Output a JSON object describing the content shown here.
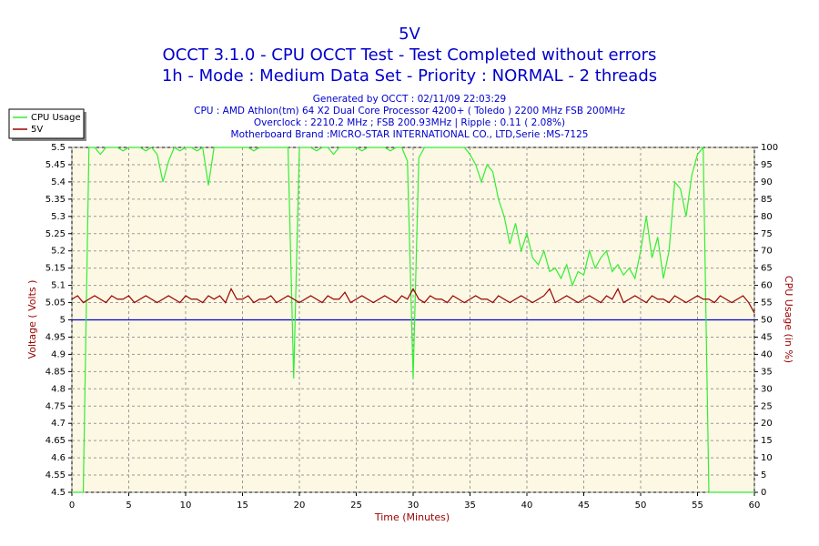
{
  "chart_data": {
    "type": "line",
    "title": [
      "5V",
      "OCCT 3.1.0 - CPU OCCT Test - Test Completed without errors",
      "1h - Mode : Medium Data Set - Priority : NORMAL - 2 threads"
    ],
    "subtitle": [
      "Generated by OCCT : 02/11/09 22:03:29",
      "CPU : AMD Athlon(tm) 64 X2 Dual Core Processor 4200+ ( Toledo ) 2200 MHz FSB 200MHz",
      "Overclock : 2210.2 MHz ; FSB 200.93MHz | Ripple : 0.11 ( 2.08%)",
      "Motherboard Brand :MICRO-STAR INTERNATIONAL CO., LTD,Serie :MS-7125"
    ],
    "xlabel": "Time (Minutes)",
    "ylabel": "Voltage ( Volts )",
    "y2label": "CPU Usage (in %)",
    "x": [
      0,
      0.5,
      1,
      1.5,
      2,
      2.5,
      3,
      3.5,
      4,
      4.5,
      5,
      5.5,
      6,
      6.5,
      7,
      7.5,
      8,
      8.5,
      9,
      9.5,
      10,
      10.5,
      11,
      11.5,
      12,
      12.5,
      13,
      13.5,
      14,
      14.5,
      15,
      15.5,
      16,
      16.5,
      17,
      17.5,
      18,
      18.5,
      19,
      19.5,
      20,
      20.5,
      21,
      21.5,
      22,
      22.5,
      23,
      23.5,
      24,
      24.5,
      25,
      25.5,
      26,
      26.5,
      27,
      27.5,
      28,
      28.5,
      29,
      29.5,
      30,
      30.5,
      31,
      31.5,
      32,
      32.5,
      33,
      33.5,
      34,
      34.5,
      35,
      35.5,
      36,
      36.5,
      37,
      37.5,
      38,
      38.5,
      39,
      39.5,
      40,
      40.5,
      41,
      41.5,
      42,
      42.5,
      43,
      43.5,
      44,
      44.5,
      45,
      45.5,
      46,
      46.5,
      47,
      47.5,
      48,
      48.5,
      49,
      49.5,
      50,
      50.5,
      51,
      51.5,
      52,
      52.5,
      53,
      53.5,
      54,
      54.5,
      55,
      55.5,
      56,
      56.5,
      57,
      57.5,
      58,
      58.5,
      59,
      59.5,
      60
    ],
    "series": [
      {
        "name": "CPU Usage",
        "color": "#33ee33",
        "axis": "y2",
        "values": [
          0,
          0,
          0,
          100,
          100,
          98,
          100,
          100,
          100,
          99,
          100,
          100,
          100,
          99,
          100,
          98,
          90,
          96,
          100,
          99,
          100,
          100,
          99,
          100,
          89,
          100,
          100,
          100,
          100,
          100,
          100,
          100,
          99,
          100,
          100,
          100,
          100,
          100,
          100,
          33,
          100,
          100,
          100,
          99,
          100,
          100,
          98,
          100,
          100,
          100,
          100,
          99,
          100,
          100,
          100,
          100,
          99,
          100,
          100,
          96,
          33,
          97,
          100,
          100,
          100,
          100,
          100,
          100,
          100,
          100,
          98,
          95,
          90,
          95,
          93,
          85,
          80,
          72,
          78,
          70,
          75,
          68,
          66,
          70,
          64,
          65,
          62,
          66,
          60,
          64,
          63,
          70,
          65,
          68,
          70,
          64,
          66,
          63,
          65,
          62,
          70,
          80,
          68,
          74,
          62,
          70,
          90,
          88,
          80,
          92,
          98,
          100,
          0,
          0,
          0,
          0,
          0,
          0,
          0,
          0,
          0
        ]
      },
      {
        "name": "5V",
        "color": "#990000",
        "values": [
          5.06,
          5.07,
          5.05,
          5.06,
          5.07,
          5.06,
          5.05,
          5.07,
          5.06,
          5.06,
          5.07,
          5.05,
          5.06,
          5.07,
          5.06,
          5.05,
          5.06,
          5.07,
          5.06,
          5.05,
          5.07,
          5.06,
          5.06,
          5.05,
          5.07,
          5.06,
          5.07,
          5.05,
          5.09,
          5.06,
          5.06,
          5.07,
          5.05,
          5.06,
          5.06,
          5.07,
          5.05,
          5.06,
          5.07,
          5.06,
          5.05,
          5.06,
          5.07,
          5.06,
          5.05,
          5.07,
          5.06,
          5.06,
          5.08,
          5.05,
          5.06,
          5.07,
          5.06,
          5.05,
          5.06,
          5.07,
          5.06,
          5.05,
          5.07,
          5.06,
          5.09,
          5.06,
          5.05,
          5.07,
          5.06,
          5.06,
          5.05,
          5.07,
          5.06,
          5.05,
          5.06,
          5.07,
          5.06,
          5.06,
          5.05,
          5.07,
          5.06,
          5.05,
          5.06,
          5.07,
          5.06,
          5.05,
          5.06,
          5.07,
          5.09,
          5.05,
          5.06,
          5.07,
          5.06,
          5.05,
          5.06,
          5.07,
          5.06,
          5.05,
          5.07,
          5.06,
          5.09,
          5.05,
          5.06,
          5.07,
          5.06,
          5.05,
          5.07,
          5.06,
          5.06,
          5.05,
          5.07,
          5.06,
          5.05,
          5.06,
          5.07,
          5.06,
          5.06,
          5.05,
          5.07,
          5.06,
          5.05,
          5.06,
          5.07,
          5.05,
          5.02
        ]
      }
    ],
    "hline": {
      "value": 5,
      "color": "#0000cc"
    },
    "xlim": [
      0,
      60
    ],
    "xticks": [
      0,
      5,
      10,
      15,
      20,
      25,
      30,
      35,
      40,
      45,
      50,
      55,
      60
    ],
    "ylim": [
      4.5,
      5.5
    ],
    "yticks": [
      4.5,
      4.55,
      4.6,
      4.65,
      4.7,
      4.75,
      4.8,
      4.85,
      4.9,
      4.95,
      5,
      5.05,
      5.1,
      5.15,
      5.2,
      5.25,
      5.3,
      5.35,
      5.4,
      5.45,
      5.5
    ],
    "y2lim": [
      0,
      100
    ],
    "y2ticks": [
      0,
      5,
      10,
      15,
      20,
      25,
      30,
      35,
      40,
      45,
      50,
      55,
      60,
      65,
      70,
      75,
      80,
      85,
      90,
      95,
      100
    ],
    "grid": true,
    "legend": "top-left"
  }
}
